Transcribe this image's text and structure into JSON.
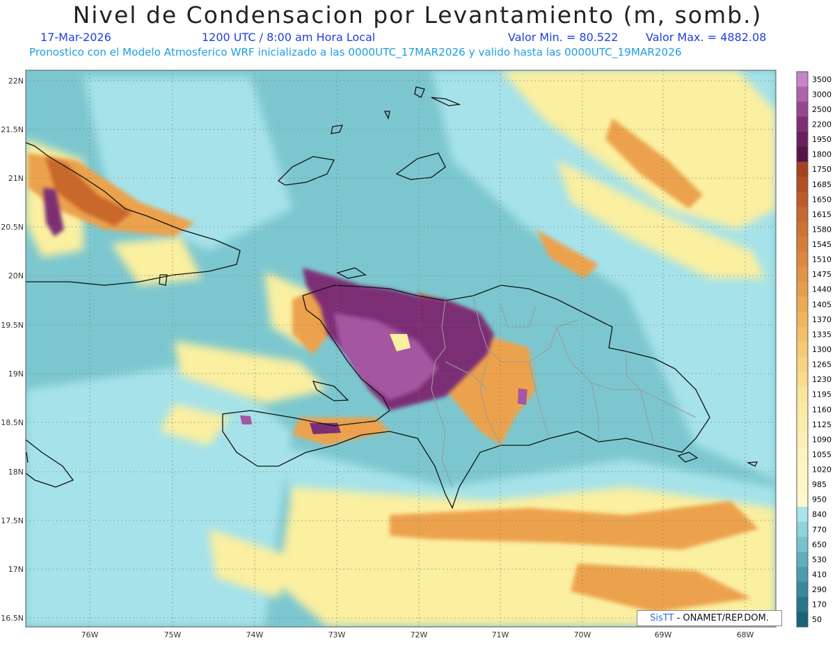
{
  "header": {
    "title": "Nivel de Condensacion por Levantamiento (m, somb.)",
    "date": "17-Mar-2026",
    "time": "1200 UTC / 8:00 am Hora Local",
    "min_label": "Valor Min. = 80.522",
    "max_label": "Valor Max. = 4882.08",
    "forecast_line": "Pronostico con el Modelo Atmosferico WRF inicializado a las 0000UTC_17MAR2026 y valido hasta las  0000UTC_19MAR2026"
  },
  "map": {
    "lat_labels": [
      "22N",
      "21.5N",
      "21N",
      "20.5N",
      "20N",
      "19.5N",
      "19N",
      "18.5N",
      "18N",
      "17.5N",
      "17N",
      "16.5N"
    ],
    "lon_labels": [
      "76W",
      "75W",
      "74W",
      "73W",
      "72W",
      "71W",
      "70W",
      "69W",
      "68W"
    ],
    "colors": {
      "ocean_teal": "#7cc7cf",
      "light_cyan": "#a6e2e9",
      "pale_yellow": "#fbefa0",
      "orange": "#eca24e",
      "dark_orange": "#c8672c",
      "purple": "#7b2f74",
      "light_purple": "#a456a1"
    }
  },
  "colorbar": {
    "labels": [
      "3500",
      "3000",
      "2500",
      "2200",
      "1950",
      "1800",
      "1750",
      "1685",
      "1650",
      "1615",
      "1580",
      "1545",
      "1510",
      "1475",
      "1440",
      "1405",
      "1370",
      "1335",
      "1300",
      "1265",
      "1230",
      "1195",
      "1160",
      "1125",
      "1090",
      "1055",
      "1020",
      "985",
      "950",
      "840",
      "770",
      "650",
      "530",
      "410",
      "290",
      "170",
      "50"
    ],
    "colors": [
      "#c685c5",
      "#ae64ad",
      "#96488f",
      "#7e2f73",
      "#6a2060",
      "#561449",
      "#a5421f",
      "#b34f25",
      "#bf5b2a",
      "#c8672f",
      "#d07235",
      "#d77d3a",
      "#dd8840",
      "#e29346",
      "#e79e4c",
      "#ebaa54",
      "#efb55d",
      "#f2c068",
      "#f5ca74",
      "#f7d480",
      "#f9dd8d",
      "#fae49a",
      "#fbe9a4",
      "#fcedae",
      "#fdf0b6",
      "#fdf3bd",
      "#fdf5c3",
      "#fdf7c8",
      "#fdf8cd",
      "#a8e4ea",
      "#8fd3dc",
      "#77c2cd",
      "#60afbd",
      "#4b9cad",
      "#38899d",
      "#27768c",
      "#18647b"
    ]
  },
  "credit": {
    "logo": "SisTT",
    "text": " - ONAMET/REP.DOM."
  }
}
